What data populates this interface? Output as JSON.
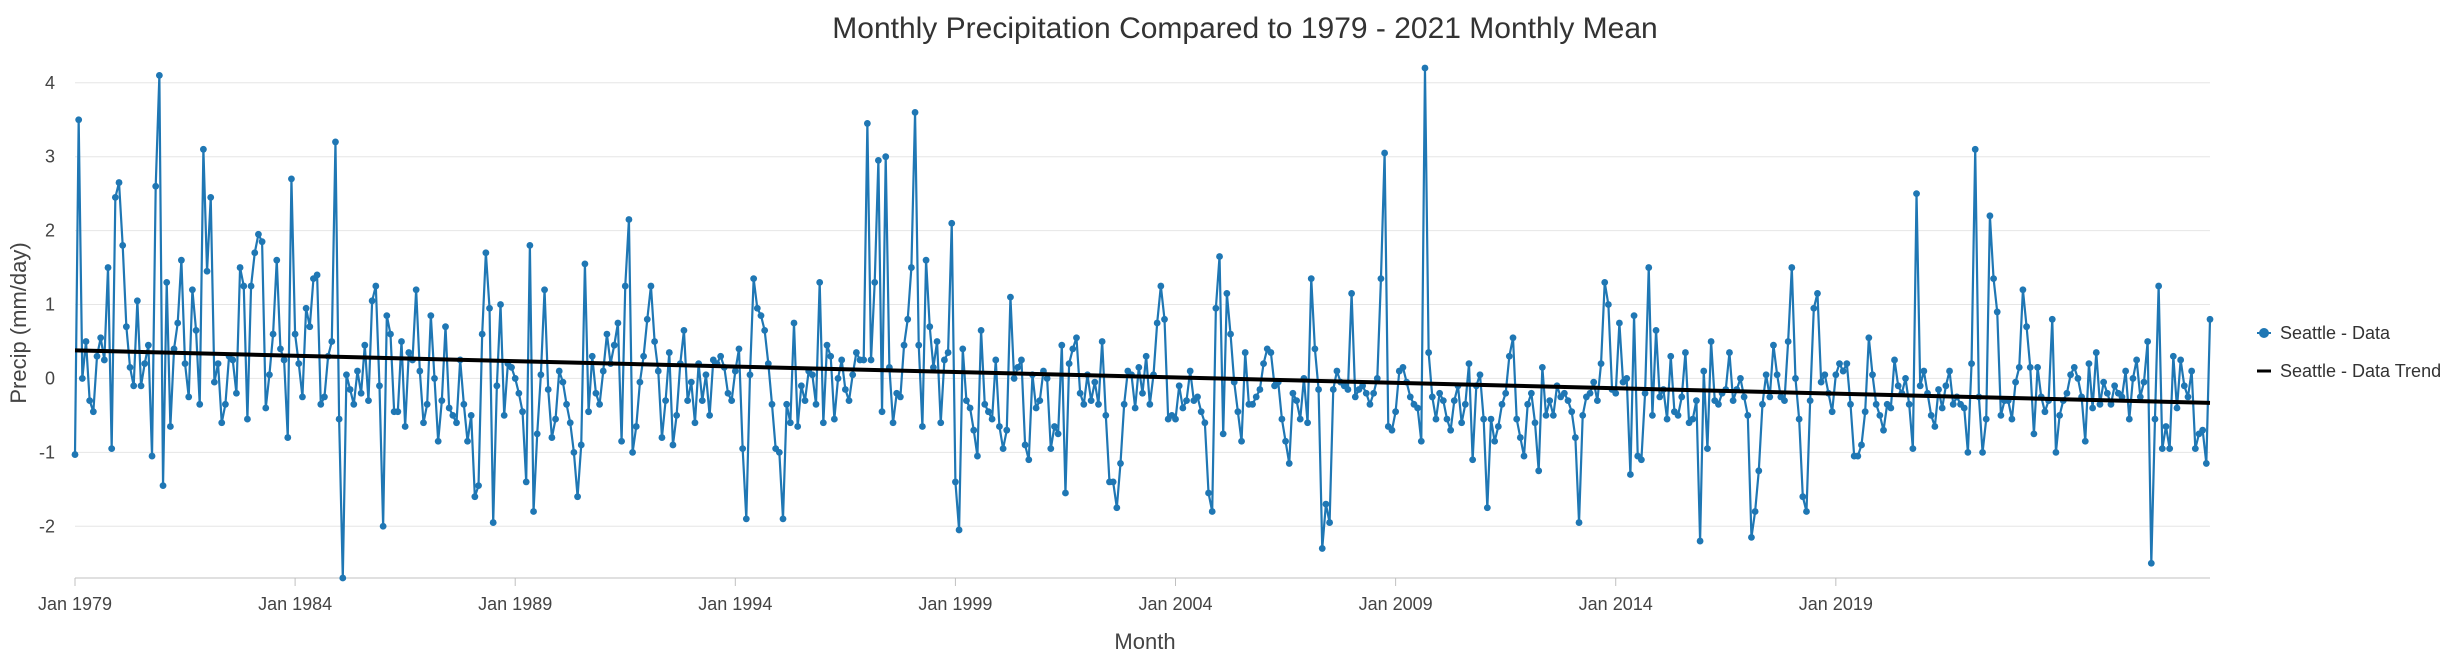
{
  "chart_data": {
    "type": "line",
    "title": "Monthly Precipitation Compared to 1979 - 2021 Monthly Mean",
    "xlabel": "Month",
    "ylabel": "Precip (mm/day)",
    "ylim": [
      -2.7,
      4.2
    ],
    "y_ticks": [
      4,
      3,
      2,
      1,
      0,
      -1,
      -2
    ],
    "x_tick_labels": [
      "Jan 1979",
      "Jan 1984",
      "Jan 1989",
      "Jan 1994",
      "Jan 1999",
      "Jan 2004",
      "Jan 2009",
      "Jan 2014",
      "Jan 2019"
    ],
    "x_start": "Jan 1979",
    "x_end": "Apr 2021",
    "grid": true,
    "legend_position": "right",
    "colors": {
      "data": "#1f77b4",
      "trend": "#000000"
    },
    "series": [
      {
        "name": "Seattle - Data",
        "style": "line-markers",
        "values": [
          -1.03,
          3.5,
          0.0,
          0.5,
          -0.3,
          -0.45,
          0.3,
          0.55,
          0.25,
          1.5,
          -0.95,
          2.45,
          2.65,
          1.8,
          0.7,
          0.15,
          -0.1,
          1.05,
          -0.1,
          0.2,
          0.45,
          -1.05,
          2.6,
          4.1,
          -1.45,
          1.3,
          -0.65,
          0.4,
          0.75,
          1.6,
          0.2,
          -0.25,
          1.2,
          0.65,
          -0.35,
          3.1,
          1.45,
          2.45,
          -0.05,
          0.2,
          -0.6,
          -0.35,
          0.3,
          0.25,
          -0.2,
          1.5,
          1.25,
          -0.55,
          1.25,
          1.7,
          1.95,
          1.85,
          -0.4,
          0.05,
          0.6,
          1.6,
          0.4,
          0.25,
          -0.8,
          2.7,
          0.6,
          0.2,
          -0.25,
          0.95,
          0.7,
          1.35,
          1.4,
          -0.35,
          -0.25,
          0.3,
          0.5,
          3.2,
          -0.55,
          -2.7,
          0.05,
          -0.15,
          -0.35,
          0.1,
          -0.2,
          0.45,
          -0.3,
          1.05,
          1.25,
          -0.1,
          -2.0,
          0.85,
          0.6,
          -0.45,
          -0.45,
          0.5,
          -0.65,
          0.35,
          0.25,
          1.2,
          0.1,
          -0.6,
          -0.35,
          0.85,
          0.0,
          -0.85,
          -0.3,
          0.7,
          -0.4,
          -0.5,
          -0.6,
          0.25,
          -0.35,
          -0.85,
          -0.5,
          -1.6,
          -1.45,
          0.6,
          1.7,
          0.95,
          -1.95,
          -0.1,
          1.0,
          -0.5,
          0.2,
          0.15,
          0.0,
          -0.2,
          -0.45,
          -1.4,
          1.8,
          -1.8,
          -0.75,
          0.05,
          1.2,
          -0.15,
          -0.8,
          -0.55,
          0.1,
          -0.05,
          -0.35,
          -0.6,
          -1.0,
          -1.6,
          -0.9,
          1.55,
          -0.45,
          0.3,
          -0.2,
          -0.35,
          0.1,
          0.6,
          0.2,
          0.45,
          0.75,
          -0.85,
          1.25,
          2.15,
          -1.0,
          -0.65,
          -0.05,
          0.3,
          0.8,
          1.25,
          0.5,
          0.1,
          -0.8,
          -0.3,
          0.35,
          -0.9,
          -0.5,
          0.2,
          0.65,
          -0.3,
          -0.05,
          -0.6,
          0.2,
          -0.3,
          0.05,
          -0.5,
          0.25,
          0.2,
          0.3,
          0.15,
          -0.2,
          -0.3,
          0.1,
          0.4,
          -0.95,
          -1.9,
          0.05,
          1.35,
          0.95,
          0.85,
          0.65,
          0.2,
          -0.35,
          -0.95,
          -1.0,
          -1.9,
          -0.35,
          -0.6,
          0.75,
          -0.65,
          -0.1,
          -0.3,
          0.1,
          0.05,
          -0.35,
          1.3,
          -0.6,
          0.45,
          0.3,
          -0.55,
          0.0,
          0.25,
          -0.15,
          -0.3,
          0.05,
          0.35,
          0.25,
          0.25,
          3.45,
          0.25,
          1.3,
          2.95,
          -0.45,
          3.0,
          0.15,
          -0.6,
          -0.2,
          -0.25,
          0.45,
          0.8,
          1.5,
          3.6,
          0.45,
          -0.65,
          1.6,
          0.7,
          0.15,
          0.5,
          -0.6,
          0.25,
          0.35,
          2.1,
          -1.4,
          -2.05,
          0.4,
          -0.3,
          -0.4,
          -0.7,
          -1.05,
          0.65,
          -0.35,
          -0.45,
          -0.55,
          0.25,
          -0.65,
          -0.95,
          -0.7,
          1.1,
          0.0,
          0.15,
          0.25,
          -0.9,
          -1.1,
          0.05,
          -0.4,
          -0.3,
          0.1,
          0.0,
          -0.95,
          -0.65,
          -0.75,
          0.45,
          -1.55,
          0.2,
          0.4,
          0.55,
          -0.2,
          -0.35,
          0.05,
          -0.3,
          -0.05,
          -0.35,
          0.5,
          -0.5,
          -1.4,
          -1.4,
          -1.75,
          -1.15,
          -0.35,
          0.1,
          0.05,
          -0.4,
          0.15,
          -0.2,
          0.3,
          -0.35,
          0.05,
          0.75,
          1.25,
          0.8,
          -0.55,
          -0.5,
          -0.55,
          -0.1,
          -0.4,
          -0.3,
          0.1,
          -0.3,
          -0.25,
          -0.45,
          -0.6,
          -1.55,
          -1.8,
          0.95,
          1.65,
          -0.75,
          1.15,
          0.6,
          -0.05,
          -0.45,
          -0.85,
          0.35,
          -0.35,
          -0.35,
          -0.25,
          -0.15,
          0.2,
          0.4,
          0.35,
          -0.1,
          -0.05,
          -0.55,
          -0.85,
          -1.15,
          -0.2,
          -0.3,
          -0.55,
          0.0,
          -0.6,
          1.35,
          0.4,
          -0.15,
          -2.3,
          -1.7,
          -1.95,
          -0.15,
          0.1,
          -0.05,
          -0.1,
          -0.15,
          1.15,
          -0.25,
          -0.15,
          -0.1,
          -0.2,
          -0.35,
          -0.2,
          0.0,
          1.35,
          3.05,
          -0.65,
          -0.7,
          -0.45,
          0.1,
          0.15,
          -0.05,
          -0.25,
          -0.35,
          -0.4,
          -0.85,
          4.2,
          0.35,
          -0.25,
          -0.55,
          -0.2,
          -0.3,
          -0.55,
          -0.7,
          -0.3,
          -0.1,
          -0.6,
          -0.35,
          0.2,
          -1.1,
          -0.1,
          0.05,
          -0.55,
          -1.75,
          -0.55,
          -0.85,
          -0.65,
          -0.35,
          -0.2,
          0.3,
          0.55,
          -0.55,
          -0.8,
          -1.05,
          -0.35,
          -0.2,
          -0.6,
          -1.25,
          0.15,
          -0.5,
          -0.3,
          -0.5,
          -0.1,
          -0.25,
          -0.2,
          -0.3,
          -0.45,
          -0.8,
          -1.95,
          -0.5,
          -0.25,
          -0.2,
          -0.05,
          -0.3,
          0.2,
          1.3,
          1.0,
          -0.15,
          -0.2,
          0.75,
          -0.05,
          0.0,
          -1.3,
          0.85,
          -1.05,
          -1.1,
          -0.2,
          1.5,
          -0.5,
          0.65,
          -0.25,
          -0.15,
          -0.55,
          0.3,
          -0.45,
          -0.5,
          -0.25,
          0.35,
          -0.6,
          -0.55,
          -0.3,
          -2.2,
          0.1,
          -0.95,
          0.5,
          -0.3,
          -0.35,
          -0.2,
          -0.15,
          0.35,
          -0.3,
          -0.15,
          0.0,
          -0.25,
          -0.5,
          -2.15,
          -1.8,
          -1.25,
          -0.35,
          0.05,
          -0.25,
          0.45,
          0.05,
          -0.25,
          -0.3,
          0.5,
          1.5,
          0.0,
          -0.55,
          -1.6,
          -1.8,
          -0.3,
          0.95,
          1.15,
          -0.05,
          0.05,
          -0.2,
          -0.45,
          0.05,
          0.2,
          0.1,
          0.2,
          -0.35,
          -1.05,
          -1.05,
          -0.9,
          -0.45,
          0.55,
          0.05,
          -0.35,
          -0.5,
          -0.7,
          -0.35,
          -0.4,
          0.25,
          -0.1,
          -0.2,
          0.0,
          -0.35,
          -0.95,
          2.5,
          -0.1,
          0.1,
          -0.2,
          -0.5,
          -0.65,
          -0.15,
          -0.4,
          -0.1,
          0.1,
          -0.35,
          -0.25,
          -0.35,
          -0.4,
          -1.0,
          0.2,
          3.1,
          -0.25,
          -1.0,
          -0.55,
          2.2,
          1.35,
          0.9,
          -0.5,
          -0.3,
          -0.3,
          -0.55,
          -0.05,
          0.15,
          1.2,
          0.7,
          0.15,
          -0.75,
          0.15,
          -0.25,
          -0.45,
          -0.3,
          0.8,
          -1.0,
          -0.5,
          -0.3,
          -0.2,
          0.05,
          0.15,
          0.0,
          -0.25,
          -0.85,
          0.2,
          -0.4,
          0.35,
          -0.35,
          -0.05,
          -0.2,
          -0.35,
          -0.1,
          -0.2,
          -0.25,
          0.1,
          -0.55,
          0.0,
          0.25,
          -0.25,
          -0.05,
          0.5,
          -2.5,
          -0.55,
          1.25,
          -0.95,
          -0.65,
          -0.95,
          0.3,
          -0.4,
          0.25,
          -0.1,
          -0.25,
          0.1,
          -0.95,
          -0.75,
          -0.7,
          -1.15,
          0.8
        ]
      },
      {
        "name": "Seattle - Data Trend",
        "style": "line",
        "start_value": 0.38,
        "end_value": -0.33
      }
    ]
  }
}
